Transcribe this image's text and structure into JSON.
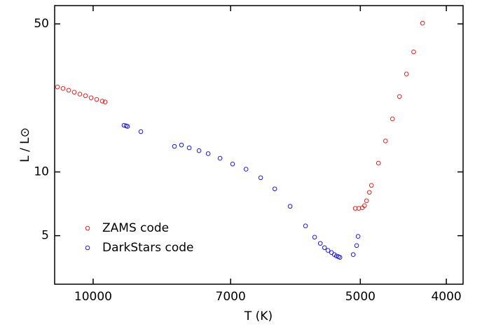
{
  "chart_data": {
    "type": "scatter",
    "xlabel": "T (K)",
    "ylabel": "L / L⊙",
    "xscale": "log",
    "yscale": "log",
    "x_reversed": true,
    "xlim": [
      11050,
      3830
    ],
    "ylim": [
      2.95,
      61
    ],
    "xticks": [
      10000,
      7000,
      5000,
      4000
    ],
    "yticks": [
      5,
      10,
      50
    ],
    "legend": "lower left",
    "marker": "open-circle",
    "series": [
      {
        "name": "ZAMS code",
        "color": "#e8201c",
        "x": [
          10970,
          10812,
          10655,
          10502,
          10350,
          10200,
          10053,
          9908,
          9765,
          9694,
          5066,
          5020,
          4974,
          4947,
          4920,
          4884,
          4858,
          4770,
          4684,
          4600,
          4517,
          4436,
          4354,
          4255
        ],
        "values": [
          25.2,
          24.8,
          24.3,
          23.8,
          23.3,
          22.9,
          22.4,
          22.0,
          21.6,
          21.4,
          6.73,
          6.73,
          6.77,
          6.93,
          7.31,
          8.01,
          8.64,
          11.0,
          14.0,
          17.8,
          22.7,
          29.0,
          36.9,
          50.4
        ]
      },
      {
        "name": "DarkStars code",
        "color": "#1a1ae6",
        "x": [
          9230,
          9179,
          9146,
          8836,
          8098,
          7952,
          7794,
          7598,
          7420,
          7195,
          6964,
          6726,
          6475,
          6243,
          5999,
          5764,
          5629,
          5547,
          5487,
          5438,
          5388,
          5349,
          5320,
          5291,
          5272,
          5093,
          5048,
          5029
        ],
        "values": [
          16.6,
          16.5,
          16.4,
          15.5,
          13.2,
          13.4,
          13.0,
          12.6,
          12.2,
          11.6,
          10.9,
          10.3,
          9.39,
          8.32,
          6.88,
          5.56,
          4.92,
          4.6,
          4.39,
          4.26,
          4.16,
          4.07,
          4.01,
          3.98,
          3.95,
          4.07,
          4.49,
          4.96
        ]
      }
    ]
  }
}
